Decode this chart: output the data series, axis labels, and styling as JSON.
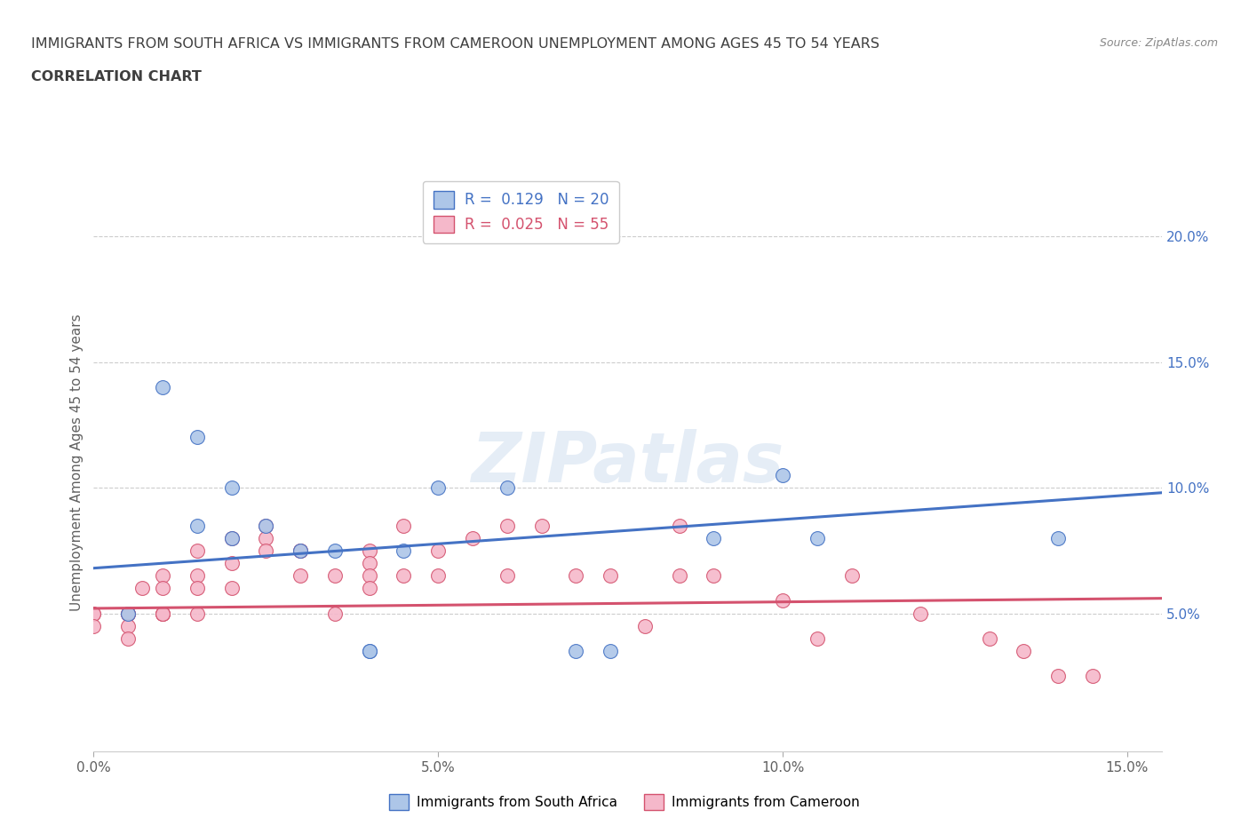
{
  "title_line1": "IMMIGRANTS FROM SOUTH AFRICA VS IMMIGRANTS FROM CAMEROON UNEMPLOYMENT AMONG AGES 45 TO 54 YEARS",
  "title_line2": "CORRELATION CHART",
  "source": "Source: ZipAtlas.com",
  "ylabel": "Unemployment Among Ages 45 to 54 years",
  "xlim": [
    0.0,
    0.155
  ],
  "ylim": [
    -0.005,
    0.225
  ],
  "xticks": [
    0.0,
    0.05,
    0.1,
    0.15
  ],
  "yticks": [
    0.05,
    0.1,
    0.15,
    0.2
  ],
  "xticklabels": [
    "0.0%",
    "5.0%",
    "10.0%",
    "15.0%"
  ],
  "yticklabels": [
    "5.0%",
    "10.0%",
    "15.0%",
    "20.0%"
  ],
  "south_africa_x": [
    0.005,
    0.01,
    0.015,
    0.015,
    0.02,
    0.02,
    0.025,
    0.03,
    0.035,
    0.04,
    0.04,
    0.045,
    0.05,
    0.06,
    0.07,
    0.075,
    0.09,
    0.1,
    0.105,
    0.14
  ],
  "south_africa_y": [
    0.05,
    0.14,
    0.12,
    0.085,
    0.1,
    0.08,
    0.085,
    0.075,
    0.075,
    0.035,
    0.035,
    0.075,
    0.1,
    0.1,
    0.035,
    0.035,
    0.08,
    0.105,
    0.08,
    0.08
  ],
  "cameroon_x": [
    0.0,
    0.0,
    0.0,
    0.005,
    0.005,
    0.005,
    0.005,
    0.005,
    0.007,
    0.01,
    0.01,
    0.01,
    0.01,
    0.01,
    0.015,
    0.015,
    0.015,
    0.015,
    0.02,
    0.02,
    0.02,
    0.025,
    0.025,
    0.025,
    0.03,
    0.03,
    0.03,
    0.035,
    0.035,
    0.04,
    0.04,
    0.04,
    0.04,
    0.045,
    0.045,
    0.05,
    0.05,
    0.055,
    0.06,
    0.06,
    0.065,
    0.07,
    0.075,
    0.08,
    0.085,
    0.085,
    0.09,
    0.1,
    0.105,
    0.11,
    0.12,
    0.13,
    0.135,
    0.14,
    0.145
  ],
  "cameroon_y": [
    0.05,
    0.05,
    0.045,
    0.05,
    0.05,
    0.05,
    0.045,
    0.04,
    0.06,
    0.065,
    0.05,
    0.05,
    0.06,
    0.05,
    0.075,
    0.065,
    0.06,
    0.05,
    0.08,
    0.07,
    0.06,
    0.085,
    0.08,
    0.075,
    0.075,
    0.075,
    0.065,
    0.065,
    0.05,
    0.075,
    0.07,
    0.065,
    0.06,
    0.085,
    0.065,
    0.065,
    0.075,
    0.08,
    0.085,
    0.065,
    0.085,
    0.065,
    0.065,
    0.045,
    0.065,
    0.085,
    0.065,
    0.055,
    0.04,
    0.065,
    0.05,
    0.04,
    0.035,
    0.025,
    0.025
  ],
  "south_africa_color": "#adc6e8",
  "cameroon_color": "#f5b8ca",
  "south_africa_line_color": "#4472c4",
  "cameroon_line_color": "#d4526e",
  "r_south_africa": "0.129",
  "n_south_africa": "20",
  "r_cameroon": "0.025",
  "n_cameroon": "55",
  "watermark": "ZIPatlas",
  "title_color": "#3f3f3f",
  "axis_color": "#606060",
  "grid_color": "#cccccc",
  "background_color": "#ffffff",
  "sa_trend_x0": 0.0,
  "sa_trend_y0": 0.068,
  "sa_trend_x1": 0.155,
  "sa_trend_y1": 0.098,
  "cm_trend_x0": 0.0,
  "cm_trend_y0": 0.052,
  "cm_trend_x1": 0.155,
  "cm_trend_y1": 0.056
}
